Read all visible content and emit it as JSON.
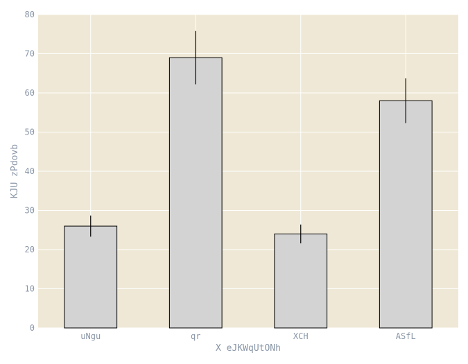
{
  "chart_data": {
    "type": "bar",
    "title": "",
    "xlabel": "X eJKWqUtONh",
    "ylabel": "KJU zPdovb",
    "categories": [
      "uNgu",
      "qr",
      "XCH",
      "ASfL"
    ],
    "values": [
      26,
      69,
      24,
      58
    ],
    "errors": [
      2.7,
      6.8,
      2.4,
      5.7
    ],
    "ylim": [
      0,
      80
    ],
    "yticks": [
      0,
      10,
      20,
      30,
      40,
      50,
      60,
      70,
      80
    ],
    "grid": true,
    "colors": {
      "plot_background": "#efe8d6",
      "bar_fill": "#d3d3d3",
      "bar_edge": "#000000",
      "error_bar": "#000000",
      "grid": "#ffffff",
      "tick_label": "#8a97a8"
    }
  }
}
